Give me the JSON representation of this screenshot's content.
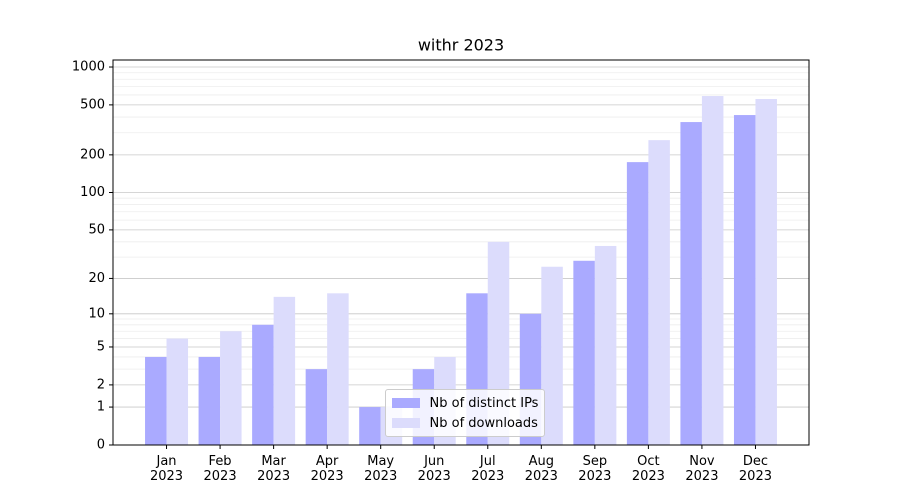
{
  "chart_data": {
    "type": "bar",
    "title": "withr 2023",
    "categories": [
      "Jan\n2023",
      "Feb\n2023",
      "Mar\n2023",
      "Apr\n2023",
      "May\n2023",
      "Jun\n2023",
      "Jul\n2023",
      "Aug\n2023",
      "Sep\n2023",
      "Oct\n2023",
      "Nov\n2023",
      "Dec\n2023"
    ],
    "series": [
      {
        "name": "Nb of distinct IPs",
        "color": "#aaaaff",
        "values": [
          4,
          4,
          8,
          3,
          1,
          3,
          15,
          10,
          28,
          175,
          365,
          415
        ]
      },
      {
        "name": "Nb of downloads",
        "color": "#dcdcfc",
        "values": [
          6,
          7,
          14,
          15,
          1,
          4,
          40,
          25,
          37,
          262,
          588,
          557
        ]
      }
    ],
    "yscale": "log1p",
    "ylim": [
      0,
      1137
    ],
    "yticks": [
      0,
      1,
      2,
      5,
      10,
      20,
      50,
      100,
      200,
      500,
      1000
    ],
    "minor_yticks": [
      3,
      4,
      6,
      7,
      8,
      9,
      30,
      40,
      60,
      70,
      80,
      90,
      300,
      400,
      600,
      700,
      800,
      900
    ],
    "grid": true,
    "legend": "lower center"
  }
}
